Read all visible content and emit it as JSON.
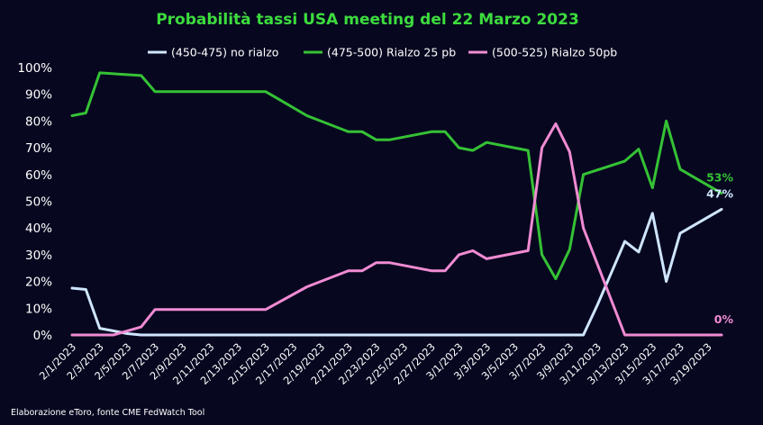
{
  "chart_data": {
    "type": "line",
    "title": "Probabilità tassi USA meeting del 22 Marzo 2023",
    "source": "Elaborazione eToro, fonte CME FedWatch Tool",
    "ylim": [
      0,
      100
    ],
    "yticks": [
      "0%",
      "10%",
      "20%",
      "30%",
      "40%",
      "50%",
      "60%",
      "70%",
      "80%",
      "90%",
      "100%"
    ],
    "xlim": [
      "2023-02-01",
      "2023-03-20"
    ],
    "xtick_labels": [
      "2/1/2023",
      "2/3/2023",
      "2/5/2023",
      "2/7/2023",
      "2/9/2023",
      "2/11/2023",
      "2/13/2023",
      "2/15/2023",
      "2/17/2023",
      "2/19/2023",
      "2/21/2023",
      "2/23/2023",
      "2/25/2023",
      "2/27/2023",
      "3/1/2023",
      "3/3/2023",
      "3/5/2023",
      "3/7/2023",
      "3/9/2023",
      "3/11/2023",
      "3/13/2023",
      "3/15/2023",
      "3/17/2023",
      "3/19/2023"
    ],
    "grid": false,
    "legend_position": "top",
    "series": [
      {
        "name": "(450-475) no rialzo",
        "color": "#cfe6ff",
        "end_label": "47%",
        "points": [
          [
            "2023-02-01",
            17.5
          ],
          [
            "2023-02-02",
            17
          ],
          [
            "2023-02-03",
            2.5
          ],
          [
            "2023-02-04",
            1.5
          ],
          [
            "2023-02-05",
            0.5
          ],
          [
            "2023-02-06",
            0
          ],
          [
            "2023-03-10",
            0
          ],
          [
            "2023-03-11",
            11
          ],
          [
            "2023-03-12",
            23
          ],
          [
            "2023-03-13",
            35
          ],
          [
            "2023-03-14",
            31
          ],
          [
            "2023-03-15",
            45.5
          ],
          [
            "2023-03-16",
            20
          ],
          [
            "2023-03-17",
            38
          ],
          [
            "2023-03-20",
            47
          ]
        ]
      },
      {
        "name": "(475-500) Rialzo 25 pb",
        "color": "#35c235",
        "end_label": "53%",
        "points": [
          [
            "2023-02-01",
            82
          ],
          [
            "2023-02-02",
            83
          ],
          [
            "2023-02-03",
            98
          ],
          [
            "2023-02-06",
            97
          ],
          [
            "2023-02-07",
            91
          ],
          [
            "2023-02-15",
            91
          ],
          [
            "2023-02-16",
            88
          ],
          [
            "2023-02-18",
            82
          ],
          [
            "2023-02-21",
            76
          ],
          [
            "2023-02-22",
            76
          ],
          [
            "2023-02-23",
            73
          ],
          [
            "2023-02-24",
            73
          ],
          [
            "2023-02-27",
            76
          ],
          [
            "2023-02-28",
            76
          ],
          [
            "2023-03-01",
            70
          ],
          [
            "2023-03-02",
            69
          ],
          [
            "2023-03-03",
            72
          ],
          [
            "2023-03-06",
            69
          ],
          [
            "2023-03-07",
            30
          ],
          [
            "2023-03-08",
            21
          ],
          [
            "2023-03-09",
            32
          ],
          [
            "2023-03-10",
            60
          ],
          [
            "2023-03-13",
            65
          ],
          [
            "2023-03-14",
            69.5
          ],
          [
            "2023-03-15",
            55
          ],
          [
            "2023-03-16",
            80
          ],
          [
            "2023-03-17",
            62
          ],
          [
            "2023-03-20",
            53
          ]
        ]
      },
      {
        "name": "(500-525) Rialzo 50pb",
        "color": "#f08bd2",
        "end_label": "0%",
        "points": [
          [
            "2023-02-01",
            0
          ],
          [
            "2023-02-04",
            0
          ],
          [
            "2023-02-06",
            3
          ],
          [
            "2023-02-07",
            9.5
          ],
          [
            "2023-02-15",
            9.5
          ],
          [
            "2023-02-18",
            18
          ],
          [
            "2023-02-21",
            24
          ],
          [
            "2023-02-22",
            24
          ],
          [
            "2023-02-23",
            27
          ],
          [
            "2023-02-24",
            27
          ],
          [
            "2023-02-27",
            24
          ],
          [
            "2023-02-28",
            24
          ],
          [
            "2023-03-01",
            30
          ],
          [
            "2023-03-02",
            31.5
          ],
          [
            "2023-03-03",
            28.5
          ],
          [
            "2023-03-06",
            31.5
          ],
          [
            "2023-03-07",
            70
          ],
          [
            "2023-03-08",
            79
          ],
          [
            "2023-03-09",
            68.5
          ],
          [
            "2023-03-10",
            40
          ],
          [
            "2023-03-13",
            0
          ],
          [
            "2023-03-20",
            0
          ]
        ]
      }
    ]
  }
}
